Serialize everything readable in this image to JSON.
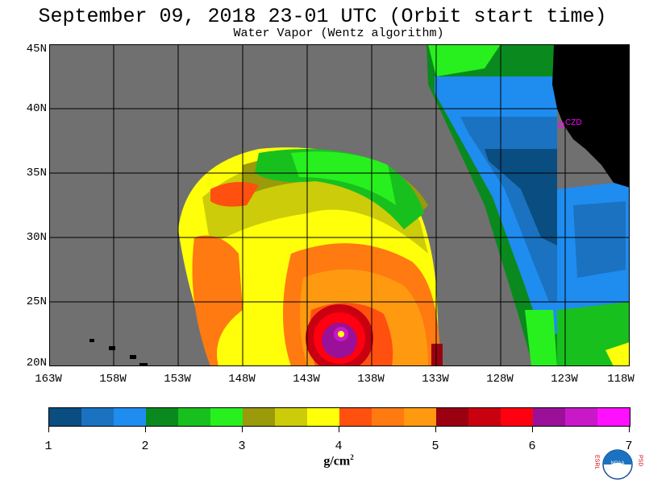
{
  "title": "September 09, 2018  23-01 UTC  (Orbit start time)",
  "subtitle": "Water Vapor (Wentz algorithm)",
  "lat_labels": [
    "45N",
    "40N",
    "35N",
    "30N",
    "25N",
    "20N"
  ],
  "lon_labels": [
    "163W",
    "158W",
    "153W",
    "148W",
    "143W",
    "138W",
    "133W",
    "128W",
    "123W",
    "118W"
  ],
  "station_label": "CZD",
  "colorbar": {
    "ticks": [
      "1",
      "2",
      "3",
      "4",
      "5",
      "6",
      "7"
    ],
    "unit": "g/cm",
    "unit_exp": "2",
    "colors": [
      "#0a4d80",
      "#1a72c0",
      "#1f8cf0",
      "#0a8a1e",
      "#18c01e",
      "#28f01e",
      "#9a9a0a",
      "#cccc0a",
      "#ffff0a",
      "#ff5010",
      "#ff7a10",
      "#ff9a10",
      "#9a0010",
      "#c80010",
      "#ff0010",
      "#9a1098",
      "#c818c8",
      "#ff10ff"
    ]
  },
  "logo": {
    "left_text": "ESRL",
    "right_text": "PSD",
    "center": "NOAA"
  },
  "colors": {
    "land": "#000000",
    "no_data": "#707070",
    "grid": "#000000",
    "station": "#ff00ff"
  }
}
